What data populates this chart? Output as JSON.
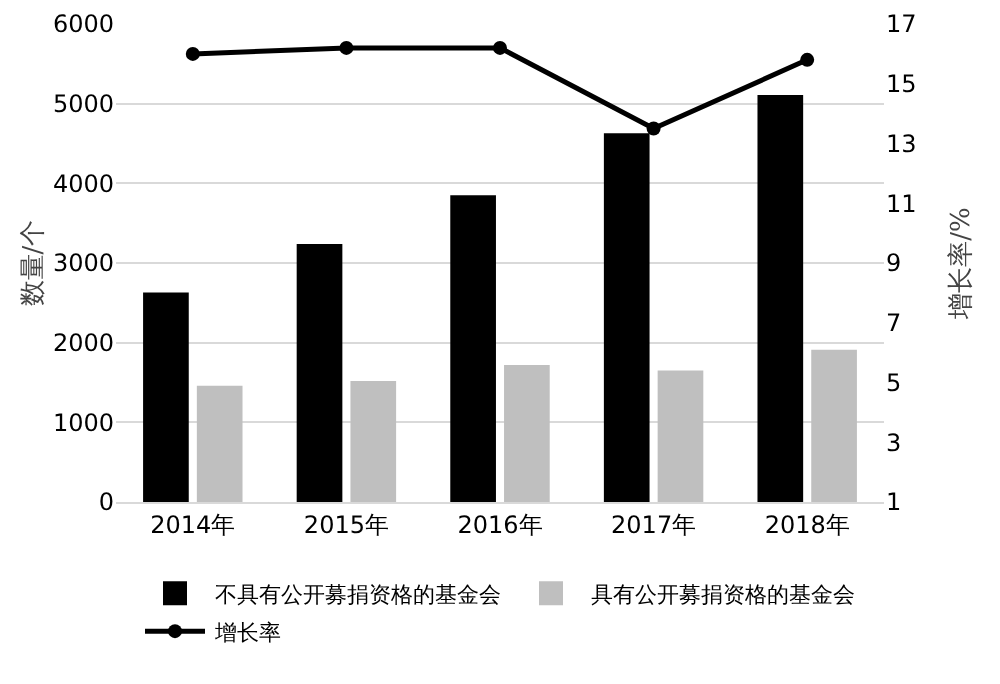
{
  "chart_data": {
    "type": "bar",
    "categories": [
      "2014年",
      "2015年",
      "2016年",
      "2017年",
      "2018年"
    ],
    "series": [
      {
        "name": "不具有公开募捐资格的基金会",
        "color": "#000000",
        "values": [
          2630,
          3240,
          3850,
          4630,
          5110
        ]
      },
      {
        "name": "具有公开募捐资格的基金会",
        "color": "#bfbfbf",
        "values": [
          1460,
          1520,
          1720,
          1650,
          1910
        ]
      },
      {
        "name": "增长率",
        "type": "line",
        "axis": "y2",
        "color": "#000000",
        "marker": "circle",
        "values": [
          16.0,
          16.2,
          16.2,
          13.5,
          15.8
        ]
      }
    ],
    "ylabel": "数量/个",
    "y2label": "增长率/%",
    "ylim": [
      0,
      6000
    ],
    "yticks": [
      0,
      1000,
      2000,
      3000,
      4000,
      5000,
      6000
    ],
    "y2lim": [
      1,
      17
    ],
    "y2ticks": [
      1,
      3,
      5,
      7,
      9,
      11,
      13,
      15,
      17
    ],
    "grid": "y",
    "legend": "bottom"
  }
}
